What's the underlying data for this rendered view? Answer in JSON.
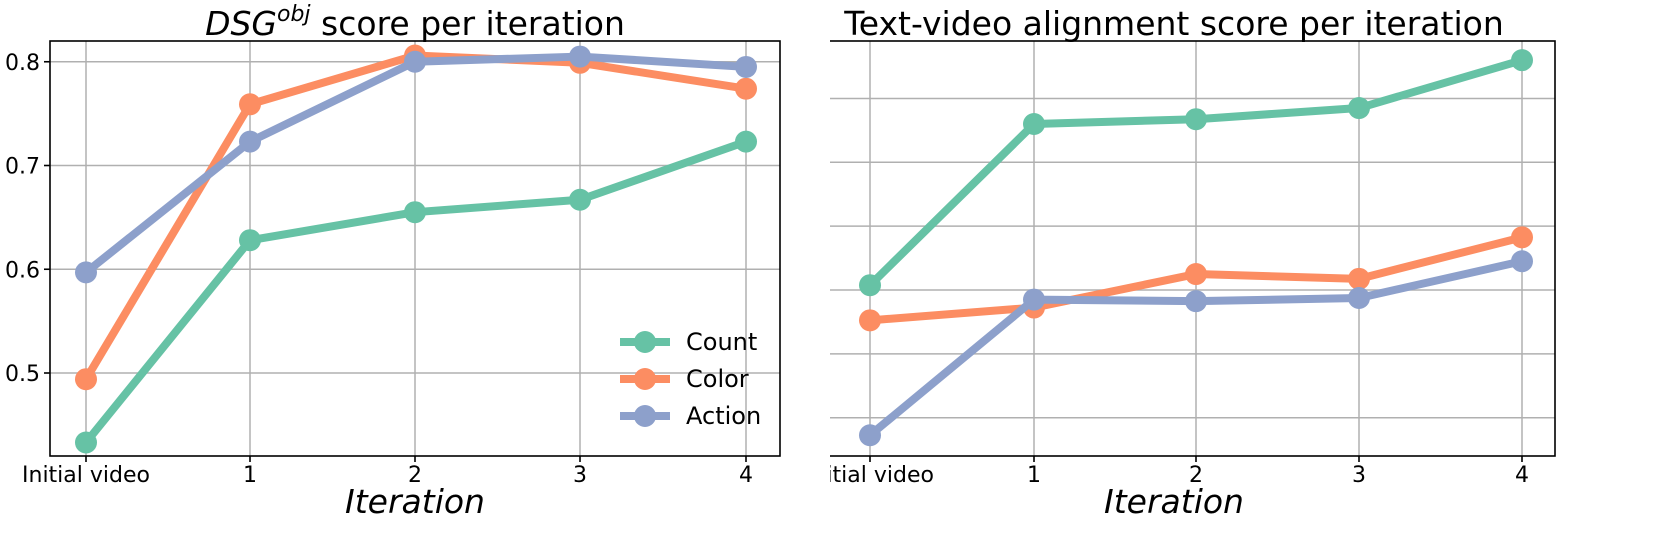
{
  "chart_data": [
    {
      "type": "line",
      "title_main": "DSG",
      "title_sup": "obj",
      "title_rest": " score per iteration",
      "xlabel": "Iteration",
      "ylabel": "",
      "categories": [
        "Initial video",
        "1",
        "2",
        "3",
        "4"
      ],
      "ylim": [
        0.42,
        0.82
      ],
      "yticks": [
        "0.5",
        "0.6",
        "0.7",
        "0.8"
      ],
      "grid": true,
      "legend": {
        "placement": "lower-right",
        "entries": [
          "Count",
          "Color",
          "Action"
        ]
      },
      "series": [
        {
          "name": "Count",
          "color": "#66c2a5",
          "values": [
            0.433,
            0.628,
            0.655,
            0.667,
            0.723
          ]
        },
        {
          "name": "Color",
          "color": "#fc8d62",
          "values": [
            0.494,
            0.759,
            0.806,
            0.799,
            0.774
          ]
        },
        {
          "name": "Action",
          "color": "#8da0cb",
          "values": [
            0.597,
            0.723,
            0.8,
            0.805,
            0.795
          ]
        }
      ]
    },
    {
      "type": "line",
      "title": "Text-video alignment score per iteration",
      "xlabel": "Iteration",
      "ylabel": "",
      "categories": [
        "Initial video",
        "1",
        "2",
        "3",
        "4"
      ],
      "ylim": [
        40.8,
        53.8
      ],
      "yticks": [
        "42",
        "44",
        "46",
        "48",
        "50",
        "52"
      ],
      "grid": true,
      "legend": null,
      "series": [
        {
          "name": "Count",
          "color": "#66c2a5",
          "values": [
            46.15,
            51.2,
            51.35,
            51.7,
            53.2
          ]
        },
        {
          "name": "Color",
          "color": "#fc8d62",
          "values": [
            45.05,
            45.45,
            46.5,
            46.35,
            47.65
          ]
        },
        {
          "name": "Action",
          "color": "#8da0cb",
          "values": [
            41.45,
            45.7,
            45.65,
            45.75,
            46.9
          ]
        }
      ]
    }
  ]
}
